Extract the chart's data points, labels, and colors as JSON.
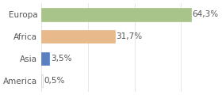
{
  "categories": [
    "America",
    "Asia",
    "Africa",
    "Europa"
  ],
  "values": [
    0.5,
    3.5,
    31.7,
    64.3
  ],
  "labels": [
    "0,5%",
    "3,5%",
    "31,7%",
    "64,3%"
  ],
  "bar_colors": [
    "#ffffff",
    "#5b7fbf",
    "#e8b98a",
    "#a8c48a"
  ],
  "bar_edge_colors": [
    "#cccccc",
    "#5b7fbf",
    "#e8b98a",
    "#a8c48a"
  ],
  "xlim": [
    0,
    75
  ],
  "background_color": "#ffffff",
  "label_fontsize": 7.5,
  "category_fontsize": 7.5,
  "text_color": "#555555"
}
